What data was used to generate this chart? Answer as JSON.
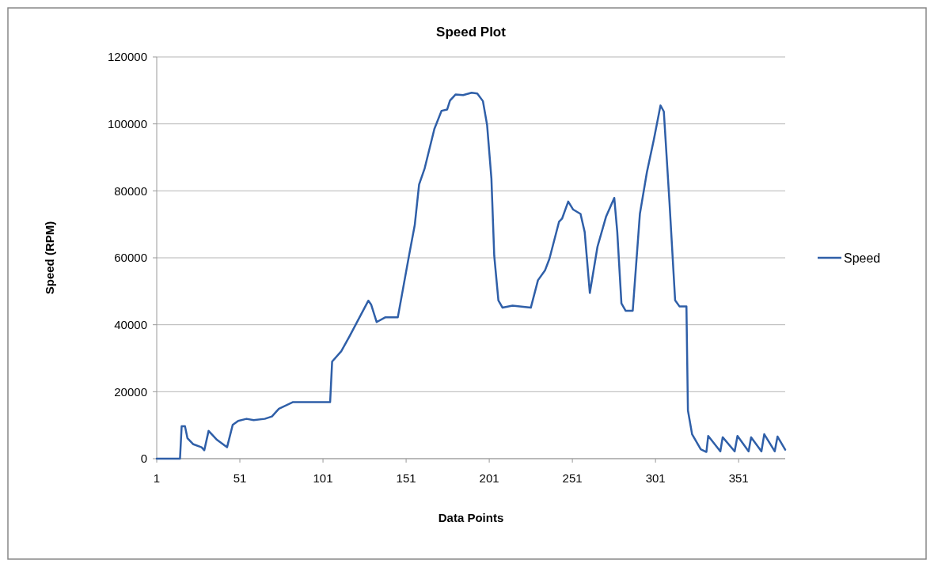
{
  "chart_data": {
    "type": "line",
    "title": "Speed Plot",
    "xlabel": "Data Points",
    "ylabel": "Speed (RPM)",
    "xlim": [
      1,
      379
    ],
    "xticks": [
      1,
      51,
      101,
      151,
      201,
      251,
      301,
      351
    ],
    "ylim": [
      0,
      120000
    ],
    "yticks": [
      0,
      20000,
      40000,
      60000,
      80000,
      100000,
      120000
    ],
    "grid": "y",
    "legend": "right",
    "marker": "none",
    "line_style": "solid",
    "series": [
      {
        "name": "Speed",
        "color": "#2f5fa8",
        "x": [
          1,
          15,
          16,
          18,
          19.5,
          23,
          28,
          29.6,
          32.2,
          37.3,
          43.3,
          46.7,
          50,
          55,
          59.3,
          66,
          70.3,
          74.5,
          83,
          105.3,
          106.5,
          112,
          117,
          128.3,
          130,
          133.3,
          138.4,
          146,
          152.8,
          156.2,
          158.8,
          162.2,
          168,
          172.3,
          175.7,
          177.4,
          180.8,
          185.3,
          190.4,
          193.8,
          197.2,
          199.7,
          202.3,
          204,
          206.5,
          209,
          215,
          226,
          230.3,
          234.5,
          237.2,
          243,
          244.8,
          248.5,
          251.5,
          255.9,
          258.4,
          261.5,
          266.1,
          271.2,
          276.2,
          278,
          280.5,
          283,
          287.3,
          291.6,
          295.8,
          300,
          304,
          306,
          309.4,
          312.8,
          315.4,
          319.6,
          320.5,
          323,
          328.2,
          331.6,
          332.7,
          340,
          341.4,
          348.6,
          350.3,
          357,
          358.5,
          364.7,
          366.4,
          372.7,
          374.4,
          379
        ],
        "values": [
          0,
          0,
          9700,
          9700,
          6100,
          4300,
          3400,
          2500,
          8300,
          5600,
          3400,
          10100,
          11300,
          11900,
          11500,
          11900,
          12600,
          14900,
          16900,
          16900,
          29000,
          32100,
          36600,
          47200,
          46000,
          40800,
          42200,
          42200,
          60800,
          69800,
          81900,
          86800,
          98500,
          103900,
          104300,
          107000,
          108800,
          108600,
          109300,
          109100,
          106800,
          99700,
          83700,
          60600,
          47300,
          45100,
          45700,
          45100,
          53300,
          56200,
          59700,
          70800,
          71700,
          76800,
          74400,
          73100,
          67700,
          49500,
          63300,
          72200,
          77900,
          67700,
          46400,
          44200,
          44200,
          73100,
          85500,
          95300,
          105500,
          103700,
          76600,
          47300,
          45500,
          45500,
          14400,
          7300,
          2800,
          2000,
          6800,
          2200,
          6400,
          2200,
          6800,
          2200,
          6400,
          2200,
          7300,
          2200,
          6600,
          2700
        ]
      }
    ]
  }
}
